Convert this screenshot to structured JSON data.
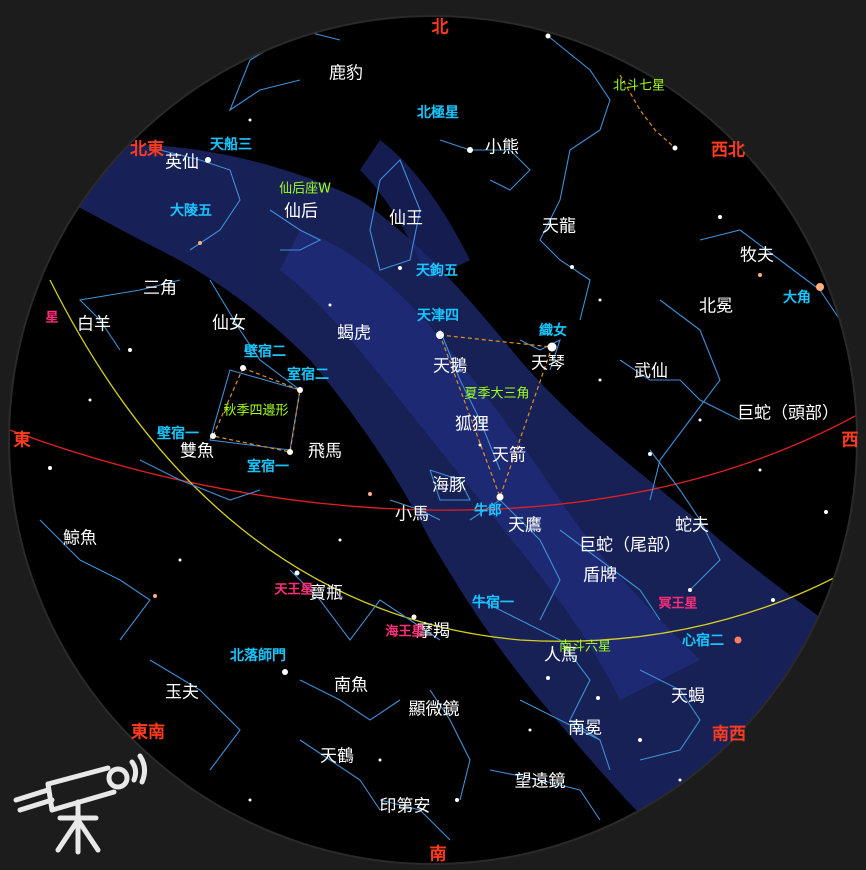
{
  "colors": {
    "background": "#1c1c1c",
    "sky": "#000000",
    "milky_way": "#1e2b6e",
    "constellation_line": "#3f8fd6",
    "horizon_outline": "#2a2a2a",
    "equator_line": "#e02020",
    "ecliptic_line": "#d8d020",
    "asterism_line": "#e09020",
    "direction_text": "#ff3b1f",
    "constellation_text": "#ffffff",
    "star_name_text": "#19c6ff",
    "asterism_text": "#a0ff1a",
    "planet_text": "#ff2d7a"
  },
  "directions": {
    "n": "北",
    "ne": "北東",
    "e": "東",
    "se": "東南",
    "s": "南",
    "sw": "南西",
    "w": "西",
    "nw": "西北"
  },
  "constellations": {
    "c1": "鹿豹",
    "c2": "小熊",
    "c3": "英仙",
    "c4": "仙后",
    "c5": "仙王",
    "c6": "天龍",
    "c7": "牧夫",
    "c8": "三角",
    "c9": "白羊",
    "c10": "仙女",
    "c11": "蝎虎",
    "c12": "北冕",
    "c13": "天鵝",
    "c14": "天琴",
    "c15": "武仙",
    "c16": "巨蛇（頭部）",
    "c17": "狐狸",
    "c18": "雙魚",
    "c19": "飛馬",
    "c20": "天箭",
    "c21": "海豚",
    "c22": "小馬",
    "c23": "天鷹",
    "c24": "蛇夫",
    "c25": "鯨魚",
    "c26": "巨蛇（尾部）",
    "c27": "盾牌",
    "c28": "寶瓶",
    "c29": "摩羯",
    "c30": "人馬",
    "c31": "南魚",
    "c32": "玉夫",
    "c33": "天蝎",
    "c34": "顯微鏡",
    "c35": "南冕",
    "c36": "天鶴",
    "c37": "望遠鏡",
    "c38": "印第安"
  },
  "stars": {
    "s1": "北極星",
    "s2": "天船三",
    "s3": "大陵五",
    "s4": "天鉤五",
    "s5": "大角",
    "s6": "天津四",
    "s7": "織女",
    "s8": "壁宿二",
    "s9": "室宿二",
    "s10": "壁宿一",
    "s11": "室宿一",
    "s12": "牛郎",
    "s13": "牛宿一",
    "s14": "北落師門",
    "s15": "心宿二"
  },
  "asterisms": {
    "a1": "北斗七星",
    "a2": "仙后座W",
    "a3": "秋季四邊形",
    "a4": "夏季大三角",
    "a5": "南斗六星"
  },
  "planets": {
    "p1": "星",
    "p2": "天王星",
    "p3": "冥王星",
    "p4": "海王星"
  },
  "icons": {
    "telescope": "telescope-icon"
  }
}
